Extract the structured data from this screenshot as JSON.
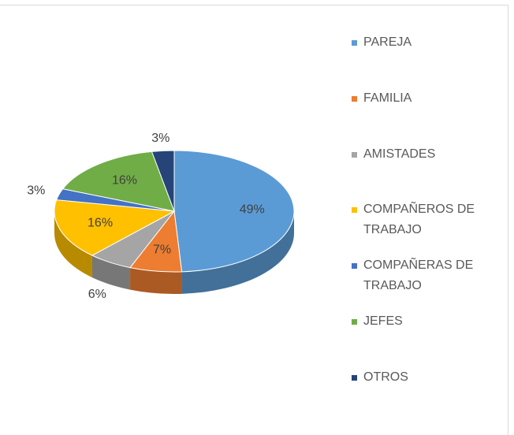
{
  "chart_data": {
    "type": "pie",
    "categories": [
      "PAREJA",
      "FAMILIA",
      "AMISTADES",
      "COMPAÑEROS DE TRABAJO",
      "COMPAÑERAS DE TRABAJO",
      "JEFES",
      "OTROS"
    ],
    "values": [
      49,
      7,
      6,
      16,
      3,
      16,
      3
    ],
    "value_labels": [
      "49%",
      "7%",
      "6%",
      "16%",
      "3%",
      "16%",
      "3%"
    ],
    "colors": [
      "#5b9bd5",
      "#ed7d31",
      "#a5a5a5",
      "#ffc000",
      "#4472c4",
      "#70ad47",
      "#264478"
    ],
    "legend": "right"
  }
}
